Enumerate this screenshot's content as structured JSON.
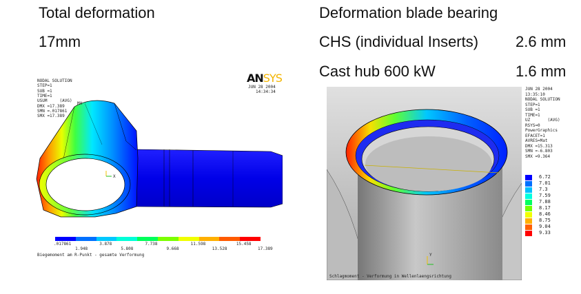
{
  "left": {
    "title": "Total deformation",
    "value": "17mm",
    "logo": "ANSYS",
    "meta_lines": [
      "NODAL SOLUTION",
      "STEP=1",
      "SUB =1",
      "TIME=1",
      "USUM     (AVG)",
      "DMX =17.389",
      "SMN =.017861",
      "SMX =17.389"
    ],
    "date": "JUN 28 2004",
    "time": "14:34:34",
    "mx_label": "MX",
    "axis_label": "X",
    "colorbar_colors": [
      "#0000ff",
      "#0070ff",
      "#00c8ff",
      "#00ffd8",
      "#00ff5a",
      "#7cff00",
      "#f0ff00",
      "#ffb000",
      "#ff5a00",
      "#ff0000"
    ],
    "colorbar_top_ticks": [
      ".017861",
      "3.878",
      "7.738",
      "11.598",
      "15.458"
    ],
    "colorbar_bottom_ticks": [
      "1.948",
      "5.808",
      "9.668",
      "13.528",
      "17.389"
    ],
    "caption": "Biegemoment am R-Punkt - gesamte Verformung"
  },
  "right": {
    "title": "Deformation blade bearing",
    "rows": [
      {
        "label": "CHS (individual Inserts)",
        "value": "2.6 mm"
      },
      {
        "label": "Cast hub 600 kW",
        "value": "1.6 mm"
      }
    ],
    "logo": "ANSYS",
    "meta_lines": [
      "JUN 28 2004",
      "13:35:10",
      "NODAL SOLUTION",
      "STEP=1",
      "SUB =1",
      "TIME=1",
      "UZ       (AVG)",
      "RSYS=0",
      "PowerGraphics",
      "EFACET=1",
      "AVRES=Mat",
      "DMX =15.313",
      "SMN =-6.803",
      "SMX =9.364"
    ],
    "legend": [
      {
        "label": "6.72",
        "color": "#0000ff"
      },
      {
        "label": "7.01",
        "color": "#0070ff"
      },
      {
        "label": "7.3",
        "color": "#00c0ff"
      },
      {
        "label": "7.59",
        "color": "#00ffe0"
      },
      {
        "label": "7.88",
        "color": "#00ff60"
      },
      {
        "label": "8.17",
        "color": "#70ff00"
      },
      {
        "label": "8.46",
        "color": "#f0ff00"
      },
      {
        "label": "8.75",
        "color": "#ffb000"
      },
      {
        "label": "9.04",
        "color": "#ff6000"
      },
      {
        "label": "9.33",
        "color": "#ff0000"
      }
    ],
    "axis_label": "Y",
    "caption": "Schlagmoment - Verformung in Wellenlaengsrichtung"
  }
}
